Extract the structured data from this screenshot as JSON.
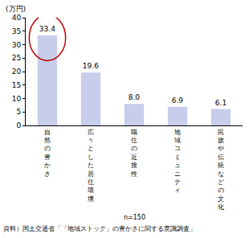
{
  "chart_data": {
    "type": "bar",
    "y_label": "(万円)",
    "categories": [
      "自然の豊かさ",
      "広々とした居住環境",
      "職住の近接性",
      "地域コミュニティ",
      "民族や伝統などの文化"
    ],
    "values": [
      33.4,
      19.6,
      8.0,
      6.9,
      6.1
    ],
    "value_labels": [
      "33.4",
      "19.6",
      "8.0",
      "6.9",
      "6.1"
    ],
    "data_labels": true,
    "color": "#c7cdea",
    "ylim": [
      0,
      40
    ],
    "yticks": [
      0,
      5,
      10,
      15,
      20,
      25,
      30,
      35,
      40
    ],
    "grid": false,
    "annotations": [
      "n=150",
      "資料）国土交通省「「地域ストック」の豊かさに関する意識調査」"
    ]
  }
}
